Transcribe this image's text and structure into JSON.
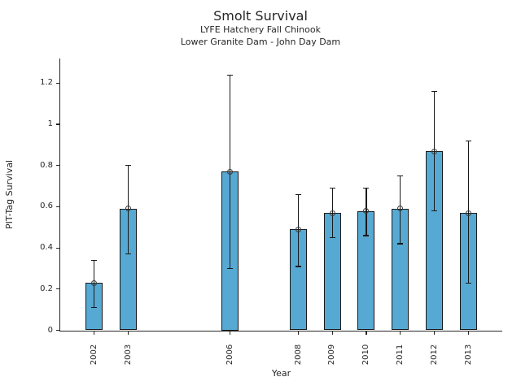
{
  "header": {
    "title": "Smolt Survival",
    "subtitle1": "LYFE Hatchery Fall Chinook",
    "subtitle2": "Lower Granite Dam - John Day Dam"
  },
  "chart_data": {
    "type": "bar",
    "title": "Smolt Survival",
    "subtitles": [
      "LYFE Hatchery Fall Chinook",
      "Lower Granite Dam - John Day Dam"
    ],
    "xlabel": "Year",
    "ylabel": "PIT-Tag Survival",
    "categories": [
      2002,
      2003,
      2006,
      2008,
      2009,
      2010,
      2011,
      2012,
      2013
    ],
    "values": [
      0.23,
      0.59,
      0.77,
      0.49,
      0.57,
      0.58,
      0.59,
      0.87,
      0.57
    ],
    "error_low": [
      0.11,
      0.37,
      0.3,
      0.31,
      0.45,
      0.46,
      0.42,
      0.58,
      0.23
    ],
    "error_high": [
      0.34,
      0.8,
      1.24,
      0.66,
      0.69,
      0.69,
      0.75,
      1.16,
      0.92
    ],
    "xlim": [
      2001,
      2014
    ],
    "ylim": [
      0,
      1.32
    ],
    "y_ticks": [
      0,
      0.2,
      0.4,
      0.6,
      0.8,
      1,
      1.2
    ],
    "y_tick_labels": [
      "0",
      "0.2",
      "0.4",
      "0.6",
      "0.8",
      "1",
      "1.2"
    ],
    "x_tick_labels": [
      "2002",
      "2003",
      "2006",
      "2008",
      "2009",
      "2010",
      "2011",
      "2012",
      "2013"
    ],
    "bar_width_years": 0.5,
    "bar_color": "#56a9d3",
    "bar_edge_color": "#1a1a1a",
    "error_color": "#1a1a1a",
    "marker": "open-circle",
    "grid": false,
    "legend": null
  }
}
